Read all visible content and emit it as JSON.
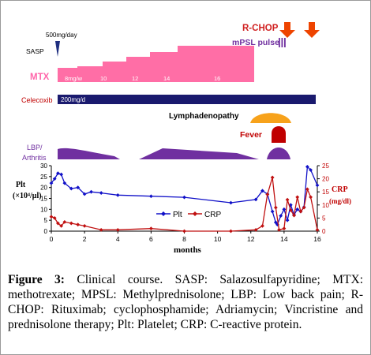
{
  "timeline": {
    "sasp": {
      "label": "SASP",
      "dose": "500mg/day"
    },
    "rchop": {
      "label": "R-CHOP"
    },
    "mpsl": {
      "label": "mPSL pulse"
    },
    "mtx": {
      "label": "MTX",
      "doses": [
        "8mg/w",
        "10",
        "12",
        "14",
        "16"
      ]
    },
    "celecoxib": {
      "label": "Celecoxib",
      "dose": "200mg/d"
    },
    "lymphadenopathy": {
      "label": "Lymphadenopathy"
    },
    "fever": {
      "label": "Fever"
    },
    "lbp": {
      "label_line1": "LBP/",
      "label_line2": "Arthritis"
    }
  },
  "chart_data": {
    "type": "line",
    "xlabel": "months",
    "xlim": [
      0,
      16
    ],
    "x_ticks": [
      0,
      2,
      4,
      6,
      8,
      10,
      12,
      14,
      16
    ],
    "left_axis": {
      "label_line1": "Plt",
      "label_line2": "(×10⁴/μl)",
      "ylim": [
        0,
        30
      ],
      "ticks": [
        0,
        5,
        10,
        15,
        20,
        25,
        30
      ]
    },
    "right_axis": {
      "label_line1": "CRP",
      "label_line2": "(mg/dl)",
      "ylim": [
        0,
        25
      ],
      "ticks": [
        0,
        5,
        10,
        15,
        20,
        25
      ]
    },
    "series": [
      {
        "name": "Plt",
        "axis": "left",
        "color": "#1010c8",
        "marker": "diamond",
        "x": [
          0,
          0.2,
          0.4,
          0.6,
          0.8,
          1.2,
          1.6,
          2.0,
          2.4,
          3.0,
          4.0,
          6.0,
          8.0,
          10.8,
          12.3,
          12.7,
          13.0,
          13.3,
          13.5,
          13.6,
          13.8,
          14.0,
          14.2,
          14.4,
          14.6,
          14.8,
          15.0,
          15.2,
          15.4,
          15.6,
          16.0
        ],
        "y": [
          22,
          24,
          26.5,
          26,
          22,
          19.5,
          20,
          17,
          18,
          17.5,
          16.5,
          16,
          15.5,
          13,
          14.5,
          18.5,
          17,
          9,
          4,
          3,
          7,
          10,
          5,
          12,
          7.5,
          10,
          9,
          11,
          29.5,
          28,
          21
        ]
      },
      {
        "name": "CRP",
        "axis": "right",
        "color": "#c01010",
        "marker": "diamond",
        "x": [
          0,
          0.2,
          0.4,
          0.6,
          0.8,
          1.2,
          1.6,
          2.0,
          3.0,
          4.0,
          6.0,
          8.0,
          10.8,
          12.3,
          12.7,
          13.0,
          13.3,
          13.5,
          13.7,
          14.0,
          14.2,
          14.4,
          14.6,
          14.8,
          15.0,
          15.2,
          15.4,
          15.6,
          16.0
        ],
        "y": [
          5.5,
          5,
          3,
          2,
          3.5,
          3,
          2.5,
          2,
          0.5,
          0.5,
          1,
          0,
          0,
          0.5,
          2,
          14,
          20.5,
          9,
          0.5,
          1,
          12,
          8,
          6,
          13,
          7.5,
          9,
          16,
          13,
          0.5
        ]
      }
    ],
    "legend": "bottom-center"
  },
  "caption": {
    "label": "Figure 3:",
    "text": "Clinical course. SASP: Salazosulfapyridine; MTX: methotrexate; MPSL: Methylprednisolone; LBP: Low back pain; R-CHOP: Rituximab; cyclophosphamide; Adriamycin; Vincristine and prednisolone therapy; Plt: Platelet; CRP: C-reactive protein."
  }
}
